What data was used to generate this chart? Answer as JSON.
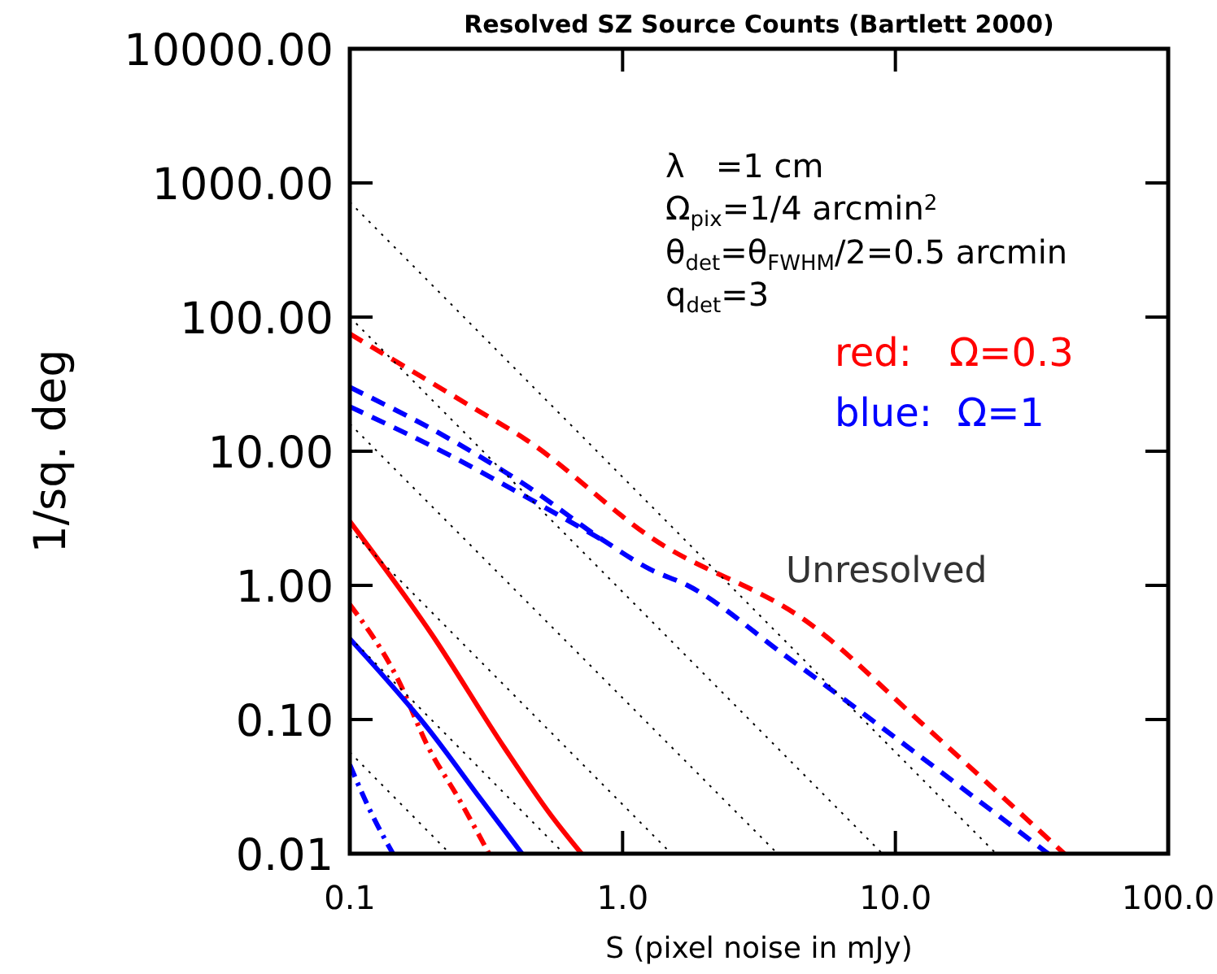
{
  "chart_data": {
    "type": "line",
    "title": "Resolved SZ Source Counts (Bartlett 2000)",
    "xlabel": "S (pixel noise in mJy)",
    "ylabel": "1/sq. deg",
    "log": "xy",
    "grid": false,
    "xlim": [
      0.1,
      100
    ],
    "xticks": [
      0.1,
      {
        "value": 1,
        "label": "1.0"
      },
      {
        "value": 10,
        "label": "10.0"
      },
      {
        "value": 100,
        "label": "100.0"
      }
    ],
    "ylim": [
      0.01,
      10000
    ],
    "yticks": [
      0.01,
      {
        "value": 0.1,
        "label": "0.10"
      },
      {
        "value": 1,
        "label": "1.00"
      },
      {
        "value": 10,
        "label": "10.00"
      },
      {
        "value": 100,
        "label": "100.00"
      },
      {
        "value": 1000,
        "label": "1000.00"
      },
      {
        "value": 10000,
        "label": "10000.00"
      }
    ],
    "series": [
      {
        "color": "#ff0000",
        "line_style": "solid",
        "x": [
          0.1,
          0.2,
          0.368,
          0.55,
          0.707
        ],
        "values": [
          3.0,
          0.43,
          0.062,
          0.019,
          0.01
        ]
      },
      {
        "color": "#ff0000",
        "line_style": "dashdot",
        "x": [
          0.1,
          0.15,
          0.194,
          0.25,
          0.324
        ],
        "values": [
          0.72,
          0.2,
          0.062,
          0.026,
          0.01
        ]
      },
      {
        "color": "#0000ff",
        "line_style": "solid",
        "x": [
          0.1,
          0.194,
          0.3,
          0.428
        ],
        "values": [
          0.4,
          0.085,
          0.026,
          0.01
        ]
      },
      {
        "color": "#0000ff",
        "line_style": "dashdot",
        "x": [
          0.1,
          0.12,
          0.144
        ],
        "values": [
          0.046,
          0.02,
          0.01
        ]
      },
      {
        "color": "#ff0000",
        "line_style": "dashed",
        "x": [
          0.1,
          0.279,
          0.44,
          1.26,
          4.97,
          12.4,
          41.6
        ],
        "values": [
          75,
          21.5,
          12.3,
          2.3,
          0.5,
          0.095,
          0.01
        ]
      },
      {
        "color": "#0000ff",
        "line_style": "dashed",
        "x": [
          0.1,
          0.233,
          0.44,
          0.87,
          1.26,
          1.73,
          3.94,
          7.8,
          36.3
        ],
        "values": [
          30,
          12.3,
          5.6,
          2.1,
          1.32,
          1.0,
          0.3,
          0.107,
          0.01
        ]
      },
      {
        "color": "#0000ff",
        "line_style": "dashed",
        "x": [
          0.1,
          0.233,
          0.44,
          0.87
        ],
        "values": [
          21.5,
          9.3,
          4.6,
          2.1
        ]
      },
      {
        "color": "#000000",
        "line_style": "dotted",
        "x": [
          0.1,
          23.4
        ],
        "values": [
          720,
          0.01
        ]
      },
      {
        "color": "#000000",
        "line_style": "dotted",
        "x": [
          0.1,
          8.96
        ],
        "values": [
          100,
          0.01
        ]
      },
      {
        "color": "#000000",
        "line_style": "dotted",
        "x": [
          0.1,
          3.7
        ],
        "values": [
          16,
          0.01
        ]
      },
      {
        "color": "#000000",
        "line_style": "dotted",
        "x": [
          0.1,
          1.51
        ],
        "values": [
          2.6,
          0.01
        ]
      },
      {
        "color": "#000000",
        "line_style": "dotted",
        "x": [
          0.1,
          0.61
        ],
        "values": [
          0.41,
          0.01
        ]
      },
      {
        "color": "#000000",
        "line_style": "dotted",
        "x": [
          0.1,
          0.233
        ],
        "values": [
          0.057,
          0.01
        ]
      }
    ],
    "annotations": [
      "λ   =1 cm",
      "Ω$_{pix}$=1/4 arcmin$^{2}$",
      "θ$_{det}$=θ$_{FWHM}$/2=0.5 arcmin",
      "q$_{det}$=3",
      "red:   Ω=0.3",
      "blue:  Ω=1",
      "Unresolved"
    ]
  }
}
